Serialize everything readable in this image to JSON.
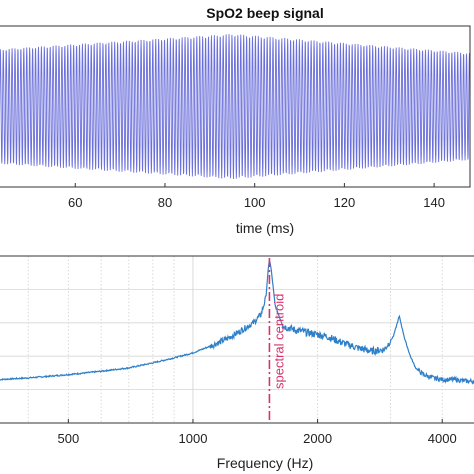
{
  "chart_data": [
    {
      "type": "line",
      "title": "SpO2 beep signal",
      "xlabel": "time (ms)",
      "ylabel": "",
      "xlim": [
        43,
        148
      ],
      "ylim": [
        -1,
        1
      ],
      "x_ticks": [
        60,
        80,
        100,
        120,
        140
      ],
      "x_tick_labels": [
        "60",
        "80",
        "100",
        "120",
        "140"
      ],
      "grid": false,
      "signal": {
        "carrier_frequency_hz": 1530,
        "amplitude_envelope": "ramps up from ~0.75 at 43 ms to ~0.95 near 95 ms, then tapers to ~0.7 at 148 ms"
      },
      "color": "#5b5fd6"
    },
    {
      "type": "line",
      "title": "",
      "xlabel": "Frequency (Hz)",
      "ylabel": "",
      "xscale": "log",
      "xlim": [
        340,
        4800
      ],
      "ylim": [
        0,
        1
      ],
      "x_ticks": [
        500,
        1000,
        2000,
        4000
      ],
      "x_tick_labels": [
        "500",
        "1000",
        "2000",
        "4000"
      ],
      "grid": true,
      "series": [
        {
          "color": "#2f7fc8",
          "x": [
            340,
            400,
            450,
            500,
            550,
            600,
            700,
            800,
            900,
            1000,
            1100,
            1200,
            1300,
            1400,
            1460,
            1500,
            1520,
            1530,
            1545,
            1580,
            1650,
            1750,
            1900,
            2100,
            2300,
            2500,
            2700,
            2900,
            3050,
            3150,
            3250,
            3350,
            3450,
            3600,
            3800,
            4000,
            4300,
            4600,
            4800
          ],
          "y": [
            0.26,
            0.27,
            0.28,
            0.29,
            0.3,
            0.31,
            0.33,
            0.36,
            0.39,
            0.42,
            0.46,
            0.5,
            0.55,
            0.6,
            0.65,
            0.75,
            0.92,
            0.98,
            0.92,
            0.7,
            0.58,
            0.56,
            0.54,
            0.52,
            0.48,
            0.45,
            0.43,
            0.44,
            0.52,
            0.64,
            0.5,
            0.4,
            0.33,
            0.29,
            0.27,
            0.26,
            0.26,
            0.25,
            0.25
          ]
        }
      ],
      "annotations": [
        {
          "type": "vline",
          "x": 1530,
          "label": "spectral centroid",
          "color": "#d6336c"
        }
      ]
    }
  ]
}
